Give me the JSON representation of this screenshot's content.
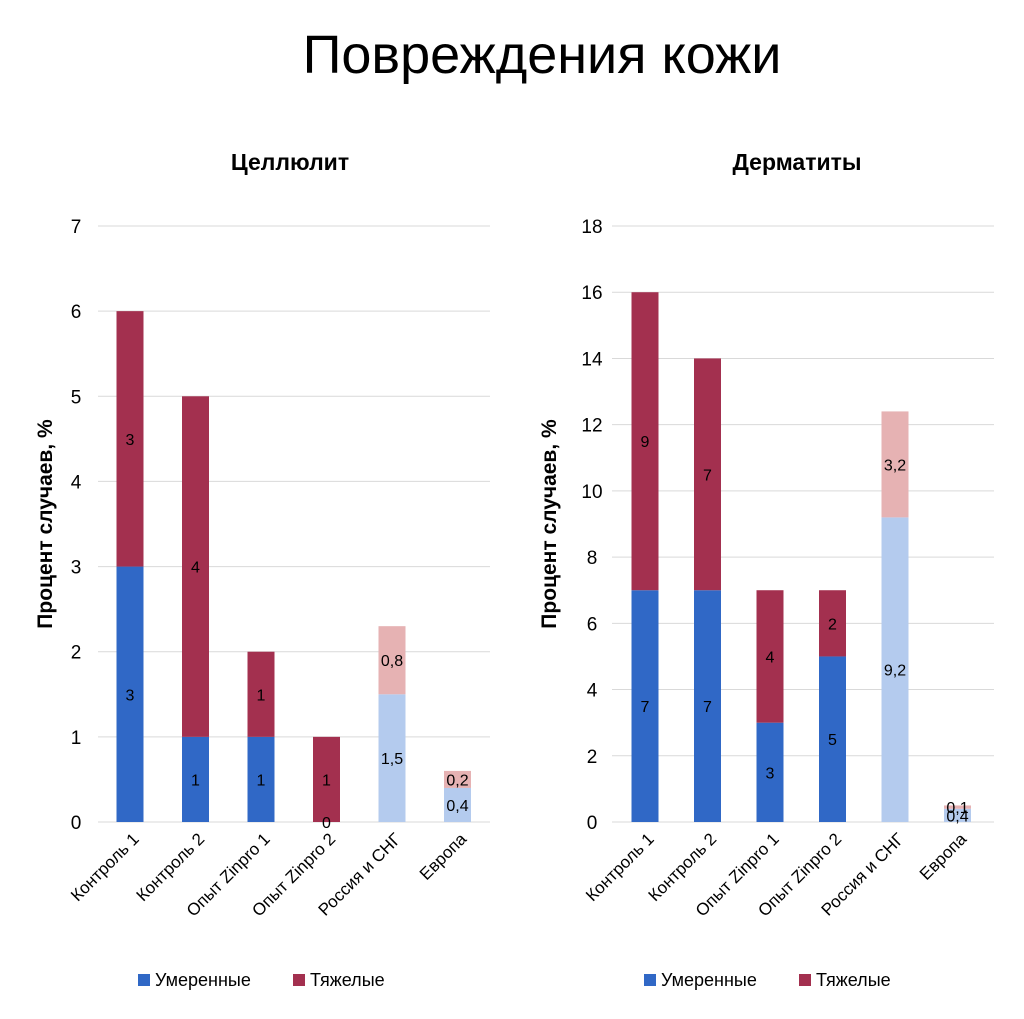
{
  "page_title": "Повреждения кожи",
  "colors": {
    "moderate": "#3068c6",
    "severe": "#a3304f",
    "moderate_light": "#b4cbee",
    "severe_light": "#e6b2b3",
    "grid": "#d9d9d9"
  },
  "chart_data": [
    {
      "type": "bar",
      "stacked": true,
      "title": "Целлюлит",
      "ylabel": "Процент случаев, %",
      "xlabel": "",
      "ylim": [
        0,
        7
      ],
      "yticks": [
        0,
        1,
        2,
        3,
        4,
        5,
        6,
        7
      ],
      "grid": true,
      "legend_position": "bottom",
      "categories": [
        "Контроль 1",
        "Контроль 2",
        "Опыт Zinpro 1",
        "Опыт Zinpro 2",
        "Россия и СНГ",
        "Европа"
      ],
      "series": [
        {
          "name": "Умеренные",
          "values": [
            3,
            1,
            1,
            0,
            1.5,
            0.4
          ],
          "labels": [
            "3",
            "1",
            "1",
            "0",
            "1,5",
            "0,4"
          ],
          "colors": [
            "#3068c6",
            "#3068c6",
            "#3068c6",
            "#3068c6",
            "#b4cbee",
            "#b4cbee"
          ]
        },
        {
          "name": "Тяжелые",
          "values": [
            3,
            4,
            1,
            1,
            0.8,
            0.2
          ],
          "labels": [
            "3",
            "4",
            "1",
            "1",
            "0,8",
            "0,2"
          ],
          "colors": [
            "#a3304f",
            "#a3304f",
            "#a3304f",
            "#a3304f",
            "#e6b2b3",
            "#e6b2b3"
          ]
        }
      ]
    },
    {
      "type": "bar",
      "stacked": true,
      "title": "Дерматиты",
      "ylabel": "Процент случаев, %",
      "xlabel": "",
      "ylim": [
        0,
        18
      ],
      "yticks": [
        0,
        2,
        4,
        6,
        8,
        10,
        12,
        14,
        16,
        18
      ],
      "grid": true,
      "legend_position": "bottom",
      "categories": [
        "Контроль 1",
        "Контроль 2",
        "Опыт Zinpro 1",
        "Опыт Zinpro 2",
        "Россия и СНГ",
        "Европа"
      ],
      "series": [
        {
          "name": "Умеренные",
          "values": [
            7,
            7,
            3,
            5,
            9.2,
            0.4
          ],
          "labels": [
            "7",
            "7",
            "3",
            "5",
            "9,2",
            "0,4"
          ],
          "colors": [
            "#3068c6",
            "#3068c6",
            "#3068c6",
            "#3068c6",
            "#b4cbee",
            "#b4cbee"
          ]
        },
        {
          "name": "Тяжелые",
          "values": [
            9,
            7,
            4,
            2,
            3.2,
            0.1
          ],
          "labels": [
            "9",
            "7",
            "4",
            "2",
            "3,2",
            "0,1"
          ],
          "colors": [
            "#a3304f",
            "#a3304f",
            "#a3304f",
            "#a3304f",
            "#e6b2b3",
            "#e6b2b3"
          ]
        }
      ]
    }
  ]
}
